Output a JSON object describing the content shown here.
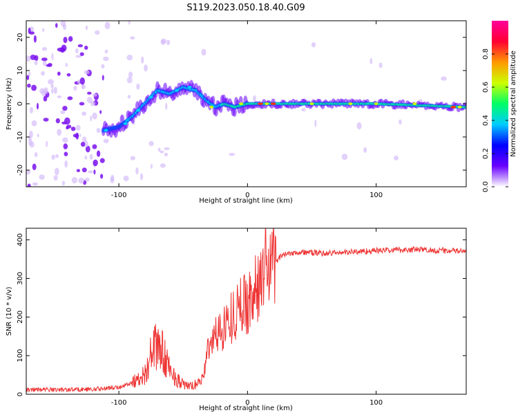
{
  "title": "S119.2023.050.18.40.G09",
  "colors": {
    "snr_line": "#ee3333",
    "axis": "#000000"
  },
  "chart_data": [
    {
      "type": "heatmap",
      "title": "S119.2023.050.18.40.G09",
      "xlabel": "Height of straight line (km)",
      "ylabel": "Frequency (Hz)",
      "xlim": [
        -172,
        170
      ],
      "ylim": [
        -25,
        25
      ],
      "x_ticks": [
        -100,
        0,
        100
      ],
      "y_ticks": [
        -20,
        -10,
        0,
        10,
        20
      ],
      "colorbar": {
        "label": "Normalized spectral amplitude",
        "range": [
          0.0,
          1.0
        ],
        "ticks": [
          0.0,
          0.2,
          0.4,
          0.6,
          0.8
        ],
        "colormap": [
          "#ffffff",
          "#6a00ff",
          "#0000ff",
          "#00ccff",
          "#00ff66",
          "#ccff00",
          "#ff9900",
          "#ff0033",
          "#ff0099"
        ]
      },
      "ridge": {
        "x": [
          -112,
          -100,
          -90,
          -80,
          -70,
          -60,
          -50,
          -40,
          -32,
          -25,
          -18,
          -10,
          0,
          10,
          50,
          100,
          170
        ],
        "y": [
          -8,
          -7,
          -4,
          0,
          4,
          3,
          5,
          4,
          1,
          -1,
          0,
          -1,
          0,
          0,
          0,
          0,
          -1
        ]
      },
      "grid": false
    },
    {
      "type": "line",
      "xlabel": "Height of straight line (km)",
      "ylabel": "SNR (10 * v/v)",
      "xlim": [
        -172,
        170
      ],
      "ylim": [
        0,
        430
      ],
      "x_ticks": [
        -100,
        0,
        100
      ],
      "y_ticks": [
        0,
        100,
        200,
        300,
        400
      ],
      "envelope": {
        "x": [
          -172,
          -140,
          -120,
          -100,
          -90,
          -80,
          -75,
          -70,
          -65,
          -60,
          -55,
          -50,
          -45,
          -40,
          -35,
          -32,
          -30,
          -25,
          -20,
          -15,
          -10,
          -5,
          0,
          5,
          10,
          15,
          18,
          20,
          25,
          30,
          40,
          60,
          100,
          130,
          170
        ],
        "y": [
          12,
          12,
          13,
          18,
          30,
          50,
          100,
          130,
          100,
          60,
          40,
          25,
          20,
          25,
          40,
          90,
          130,
          150,
          170,
          190,
          210,
          230,
          240,
          260,
          290,
          300,
          310,
          330,
          355,
          365,
          368,
          365,
          372,
          375,
          370
        ]
      },
      "peak": {
        "x": 14,
        "y": 428
      },
      "grid": false
    }
  ]
}
